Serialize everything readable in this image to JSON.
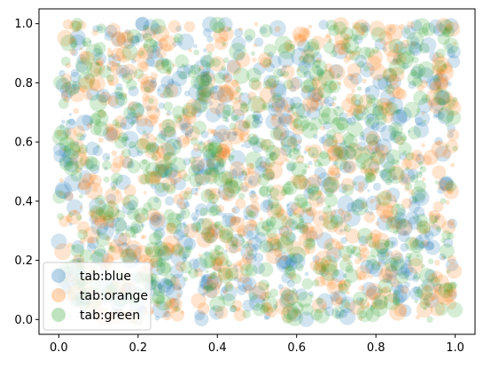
{
  "chart_data": {
    "type": "scatter",
    "title": "",
    "xlabel": "",
    "ylabel": "",
    "xlim": [
      -0.05,
      1.05
    ],
    "ylim": [
      -0.05,
      1.05
    ],
    "xticks": [
      0.0,
      0.2,
      0.4,
      0.6,
      0.8,
      1.0
    ],
    "yticks": [
      0.0,
      0.2,
      0.4,
      0.6,
      0.8,
      1.0
    ],
    "xtick_labels": [
      "0.0",
      "0.2",
      "0.4",
      "0.6",
      "0.8",
      "1.0"
    ],
    "ytick_labels": [
      "0.0",
      "0.2",
      "0.4",
      "0.6",
      "0.8",
      "1.0"
    ],
    "grid": false,
    "legend_position": "lower-left",
    "series": [
      {
        "name": "tab:blue",
        "color": "#1f77b4",
        "alpha": 0.2,
        "marker": "circle",
        "points_per_series": 750,
        "x_range": [
          0,
          1
        ],
        "y_range": [
          0,
          1
        ],
        "size_note": "marker sizes vary randomly (small to large)"
      },
      {
        "name": "tab:orange",
        "color": "#ff7f0e",
        "alpha": 0.2,
        "marker": "circle",
        "points_per_series": 750,
        "x_range": [
          0,
          1
        ],
        "y_range": [
          0,
          1
        ],
        "size_note": "marker sizes vary randomly (small to large)"
      },
      {
        "name": "tab:green",
        "color": "#2ca02c",
        "alpha": 0.2,
        "marker": "circle",
        "points_per_series": 750,
        "x_range": [
          0,
          1
        ],
        "y_range": [
          0,
          1
        ],
        "size_note": "marker sizes vary randomly (small to large)"
      }
    ]
  }
}
